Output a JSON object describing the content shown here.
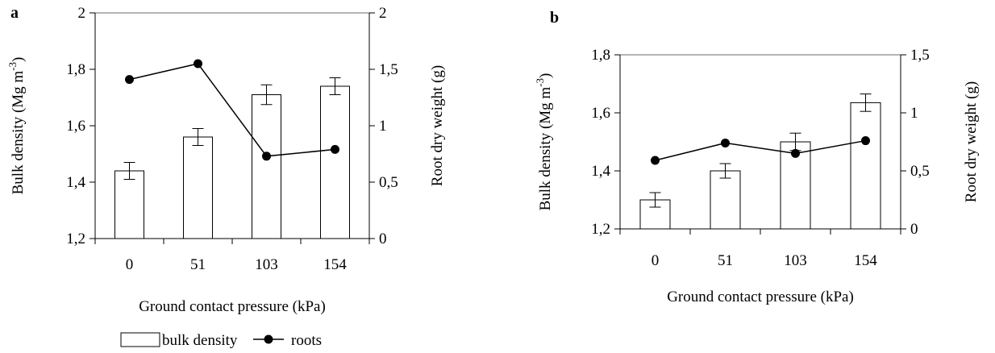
{
  "chart_data": [
    {
      "type": "bar",
      "panel_label": "a",
      "categories": [
        "0",
        "51",
        "103",
        "154"
      ],
      "xlabel": "Ground contact pressure (kPa)",
      "ylabel": "Bulk density (Mg m",
      "ylabel_sup": "-3",
      "ylabel_end": ")",
      "y2label": "Root dry weight (g)",
      "ylim": [
        1.2,
        2.0
      ],
      "yticks": [
        "1,2",
        "1,4",
        "1,6",
        "1,8",
        "2"
      ],
      "y2lim": [
        0,
        2.0
      ],
      "y2ticks": [
        "0",
        "0,5",
        "1",
        "1,5",
        "2"
      ],
      "series": [
        {
          "name": "bulk density",
          "kind": "bar",
          "axis": "left",
          "values": [
            1.44,
            1.56,
            1.71,
            1.74
          ],
          "errors": [
            0.03,
            0.03,
            0.035,
            0.03
          ]
        },
        {
          "name": "roots",
          "kind": "line",
          "axis": "right",
          "values": [
            1.41,
            1.55,
            0.73,
            0.79
          ]
        }
      ]
    },
    {
      "type": "bar",
      "panel_label": "b",
      "categories": [
        "0",
        "51",
        "103",
        "154"
      ],
      "xlabel": "Ground contact pressure (kPa)",
      "ylabel": "Bulk density (Mg m",
      "ylabel_sup": "-3",
      "ylabel_end": ")",
      "y2label": "Root dry weight (g)",
      "ylim": [
        1.2,
        1.8
      ],
      "yticks": [
        "1,2",
        "1,4",
        "1,6",
        "1,8"
      ],
      "y2lim": [
        0,
        1.5
      ],
      "y2ticks": [
        "0",
        "0,5",
        "1",
        "1,5"
      ],
      "series": [
        {
          "name": "bulk density",
          "kind": "bar",
          "axis": "left",
          "values": [
            1.3,
            1.4,
            1.5,
            1.635
          ],
          "errors": [
            0.025,
            0.025,
            0.03,
            0.03
          ]
        },
        {
          "name": "roots",
          "kind": "line",
          "axis": "right",
          "values": [
            0.59,
            0.74,
            0.65,
            0.76
          ]
        }
      ]
    }
  ],
  "legend": {
    "bar_label": "bulk density",
    "line_label": "roots"
  }
}
